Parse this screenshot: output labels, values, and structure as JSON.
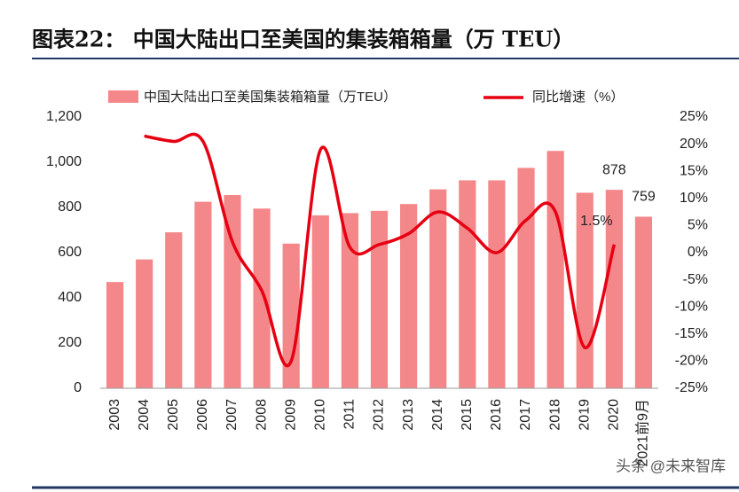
{
  "chart_data": {
    "type": "bar-line",
    "title": "图表22：  中国大陆出口至美国的集装箱箱量（万 TEU）",
    "watermark": "头条 @未来智库",
    "categories": [
      "2003",
      "2004",
      "2005",
      "2006",
      "2007",
      "2008",
      "2009",
      "2010",
      "2011",
      "2012",
      "2013",
      "2014",
      "2015",
      "2016",
      "2017",
      "2018",
      "2019",
      "2020",
      "2021前9月"
    ],
    "series": [
      {
        "name": "中国大陆出口至美国集装箱箱量（万TEU）",
        "type": "bar",
        "color": "#f4878a",
        "values": [
          470,
          570,
          690,
          825,
          855,
          795,
          640,
          765,
          775,
          785,
          815,
          880,
          920,
          920,
          975,
          1050,
          865,
          878,
          759
        ],
        "value_labels": [
          null,
          null,
          null,
          null,
          null,
          null,
          null,
          null,
          null,
          null,
          null,
          null,
          null,
          null,
          null,
          null,
          null,
          "878",
          "759"
        ]
      },
      {
        "name": "同比增速（%）",
        "type": "line",
        "axis": "y2",
        "color": "#e60012",
        "values": [
          null,
          21.5,
          20.5,
          20.5,
          2,
          -7,
          -20,
          19,
          1,
          1.5,
          3.5,
          7.5,
          4.5,
          0,
          6,
          7.5,
          -17.5,
          1.5,
          null
        ],
        "value_labels": [
          null,
          null,
          null,
          null,
          null,
          null,
          null,
          null,
          null,
          null,
          null,
          null,
          null,
          null,
          null,
          null,
          null,
          "1.5%",
          null
        ]
      }
    ],
    "ylim": [
      0,
      1200
    ],
    "yticks": [
      0,
      200,
      400,
      600,
      800,
      {
        "value": 1000,
        "label": "1,000"
      },
      {
        "value": 1200,
        "label": "1,200"
      }
    ],
    "y2lim": [
      -25,
      25
    ],
    "y2ticks": [
      {
        "value": -25,
        "label": "-25%"
      },
      {
        "value": -20,
        "label": "-20%"
      },
      {
        "value": -15,
        "label": "-15%"
      },
      {
        "value": -10,
        "label": "-10%"
      },
      {
        "value": -5,
        "label": "-5%"
      },
      {
        "value": 0,
        "label": "0%"
      },
      {
        "value": 5,
        "label": "5%"
      },
      {
        "value": 10,
        "label": "10%"
      },
      {
        "value": 15,
        "label": "15%"
      },
      {
        "value": 20,
        "label": "20%"
      },
      {
        "value": 25,
        "label": "25%"
      }
    ],
    "legend": "top"
  }
}
